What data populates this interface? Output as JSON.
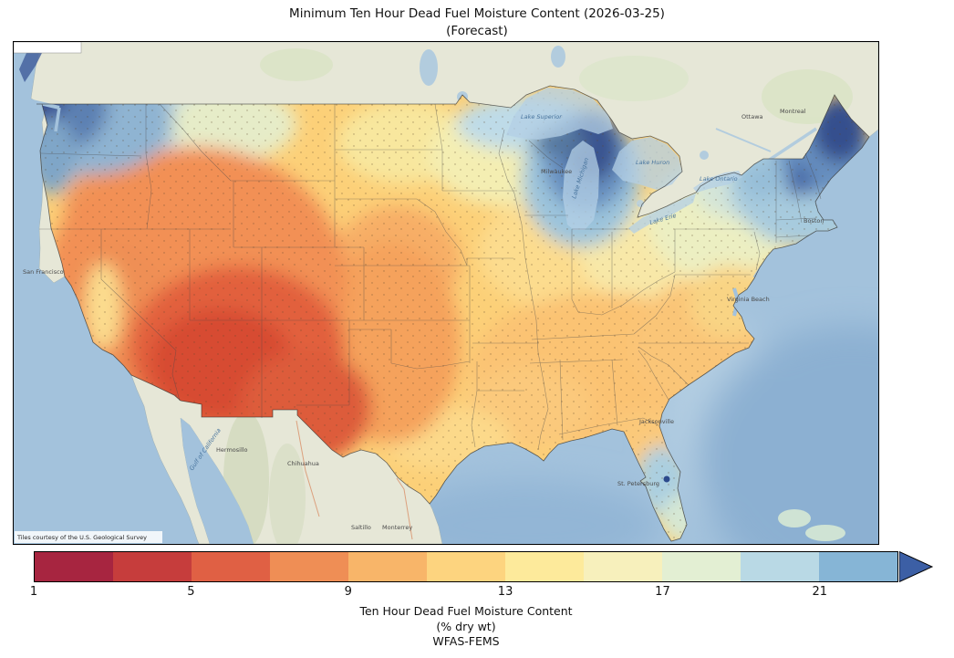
{
  "title": {
    "line1": "Minimum Ten Hour Dead Fuel Moisture Content (2026-03-25)",
    "line2": "(Forecast)"
  },
  "map": {
    "attribution": "Tiles courtesy of the U.S. Geological Survey",
    "labels": {
      "san_francisco": "San Francisco",
      "hermosillo": "Hermosillo",
      "chihuahua": "Chihuahua",
      "saltillo": "Saltillo",
      "monterrey": "Monterrey",
      "gulf_of_california": "Gulf of California",
      "lake_superior": "Lake Superior",
      "lake_michigan": "Lake Michigan",
      "lake_huron": "Lake Huron",
      "lake_erie": "Lake Erie",
      "lake_ontario": "Lake Ontario",
      "ottawa": "Ottawa",
      "montreal": "Montreal",
      "milwaukee": "Milwaukee",
      "jacksonville": "Jacksonville",
      "st_petersburg": "St. Petersburg",
      "virginia_beach": "Virginia Beach",
      "boston": "Boston"
    },
    "colors": {
      "ocean": "#a3c2dc",
      "canada_mexico_land": "#e6e7d7",
      "us_base_moisture": "#fcd078",
      "driest": "#d74c30",
      "wettest": "#35508e"
    }
  },
  "colorbar": {
    "tick_values": [
      1,
      5,
      9,
      13,
      17,
      21
    ],
    "range": [
      1,
      23
    ],
    "segment_colors": [
      "#a72540",
      "#c63d3c",
      "#e06044",
      "#ef8e55",
      "#f8b569",
      "#fdd47f",
      "#fdea9b",
      "#f7f0bc",
      "#e3efd3",
      "#b9d9e5",
      "#86b5d6"
    ],
    "arrow_color": "#3c5fa5",
    "caption_lines": [
      "Ten Hour Dead Fuel Moisture Content",
      "(% dry wt)",
      "WFAS-FEMS"
    ]
  },
  "chart_data": {
    "type": "heatmap",
    "title": "Minimum Ten Hour Dead Fuel Moisture Content (2026-03-25) (Forecast)",
    "variable": "Ten Hour Dead F uel Moisture Content (% dry wt)",
    "colorbar_ticks": [
      1,
      5,
      9,
      13,
      17,
      21
    ],
    "colorbar_range": [
      1,
      23
    ],
    "colorbar_open_ended_max": true,
    "legend_position": "bottom",
    "source_label": "WFAS-FEMS",
    "regions": [
      {
        "area": "Arizona / New Mexico / far west Texas",
        "approx_value": "3-6 (driest core)"
      },
      {
        "area": "Great Basin, interior California, southern Rockies",
        "approx_value": "6-9"
      },
      {
        "area": "Central / southern Plains, Gulf states, Southeast",
        "approx_value": "9-12"
      },
      {
        "area": "Upper Midwest, Ohio Valley, Mid-Atlantic",
        "approx_value": "12-16"
      },
      {
        "area": "Pacific Northwest coast, northern Michigan, northern New England",
        "approx_value": "17-23+ (wettest)"
      },
      {
        "area": "Central Florida (local wet spot)",
        "approx_value": "20+"
      }
    ]
  }
}
